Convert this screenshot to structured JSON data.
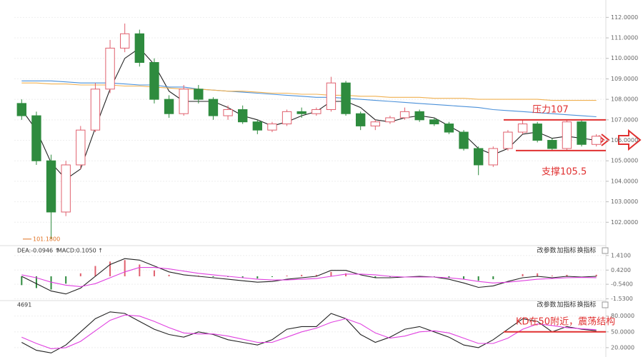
{
  "chart_data": [
    {
      "type": "candlestick",
      "ylim": [
        101.0,
        112.5
      ],
      "yticks": [
        {
          "value": 102,
          "label": "102.0000"
        },
        {
          "value": 103,
          "label": "103.0000"
        },
        {
          "value": 104,
          "label": "104.0000"
        },
        {
          "value": 105,
          "label": "105.0000"
        },
        {
          "value": 106,
          "label": "106.0000"
        },
        {
          "value": 107,
          "label": "107.0000"
        },
        {
          "value": 108,
          "label": "108.0000"
        },
        {
          "value": 109,
          "label": "109.0000"
        },
        {
          "value": 110,
          "label": "110.0000"
        },
        {
          "value": 111,
          "label": "111.0000"
        },
        {
          "value": 112,
          "label": "112.0000"
        }
      ],
      "up_color": "#e0606e",
      "down_color": "#2e8b3e",
      "candles": {
        "open": [
          107.8,
          107.2,
          105.0,
          102.5,
          104.8,
          106.5,
          108.5,
          110.5,
          111.2,
          109.8,
          108.0,
          107.3,
          108.5,
          108.0,
          107.2,
          107.5,
          106.9,
          106.5,
          106.8,
          107.4,
          107.3,
          107.5,
          108.8,
          107.3,
          106.7,
          106.9,
          107.1,
          107.4,
          107.0,
          106.8,
          106.4,
          105.6,
          104.8,
          105.6,
          106.4,
          106.8,
          106.0,
          105.6,
          106.9,
          105.8
        ],
        "high": [
          108.0,
          107.4,
          105.3,
          105.0,
          106.7,
          108.8,
          110.9,
          111.7,
          111.4,
          110.0,
          108.2,
          108.7,
          108.7,
          108.1,
          107.7,
          107.7,
          107.0,
          106.9,
          107.5,
          107.6,
          107.6,
          109.1,
          108.9,
          107.4,
          107.0,
          107.2,
          107.6,
          107.5,
          107.1,
          106.9,
          106.5,
          105.7,
          105.7,
          106.5,
          107.0,
          106.9,
          106.1,
          107.0,
          107.0,
          106.3
        ],
        "low": [
          107.0,
          104.8,
          101.18,
          102.3,
          104.6,
          106.4,
          108.3,
          110.3,
          109.6,
          107.8,
          107.1,
          107.2,
          107.8,
          107.0,
          107.0,
          106.8,
          106.3,
          106.4,
          106.7,
          107.1,
          107.2,
          107.4,
          107.2,
          106.5,
          106.5,
          106.8,
          107.0,
          106.9,
          106.7,
          106.3,
          105.5,
          104.3,
          104.7,
          105.5,
          106.3,
          105.9,
          105.5,
          105.5,
          105.7,
          105.7
        ],
        "close": [
          107.2,
          105.0,
          102.5,
          104.8,
          106.5,
          108.5,
          110.5,
          111.2,
          109.8,
          108.0,
          107.3,
          108.5,
          108.0,
          107.2,
          107.5,
          106.9,
          106.5,
          106.8,
          107.4,
          107.3,
          107.5,
          108.8,
          107.3,
          106.7,
          106.9,
          107.1,
          107.4,
          107.0,
          106.8,
          106.4,
          105.6,
          104.8,
          105.6,
          106.4,
          106.8,
          106.0,
          105.6,
          106.9,
          105.8,
          106.2
        ]
      },
      "series": [
        {
          "color": "#222222",
          "values": [
            107.5,
            106.5,
            104.9,
            104.1,
            104.6,
            106.6,
            108.5,
            110.0,
            110.5,
            109.7,
            108.4,
            107.9,
            107.9,
            107.9,
            107.6,
            107.2,
            107.0,
            106.7,
            106.9,
            107.2,
            107.4,
            107.9,
            107.9,
            107.6,
            107.0,
            106.9,
            107.1,
            107.2,
            107.1,
            106.7,
            106.3,
            105.6,
            105.3,
            105.6,
            106.3,
            106.4,
            106.1,
            106.2,
            106.1,
            106.0
          ]
        },
        {
          "color": "#4a90d9",
          "values": [
            108.9,
            108.9,
            108.9,
            108.85,
            108.8,
            108.8,
            108.8,
            108.75,
            108.7,
            108.7,
            108.6,
            108.6,
            108.5,
            108.45,
            108.4,
            108.35,
            108.3,
            108.25,
            108.2,
            108.15,
            108.1,
            108.1,
            108.05,
            108.0,
            107.95,
            107.9,
            107.85,
            107.8,
            107.75,
            107.7,
            107.65,
            107.6,
            107.5,
            107.45,
            107.4,
            107.35,
            107.3,
            107.25,
            107.2,
            107.15
          ]
        },
        {
          "color": "#f0b050",
          "values": [
            108.8,
            108.8,
            108.75,
            108.75,
            108.7,
            108.7,
            108.7,
            108.65,
            108.65,
            108.6,
            108.55,
            108.5,
            108.5,
            108.45,
            108.4,
            108.4,
            108.35,
            108.3,
            108.3,
            108.25,
            108.25,
            108.2,
            108.2,
            108.15,
            108.15,
            108.1,
            108.1,
            108.1,
            108.05,
            108.05,
            108.05,
            108.0,
            108.0,
            108.0,
            108.0,
            108.0,
            107.95,
            107.95,
            107.95,
            107.95
          ]
        }
      ],
      "low_marker": {
        "value": 101.18,
        "label": "101.1800"
      },
      "annotations": [
        {
          "text": "压力107",
          "value": 107
        },
        {
          "text": "支撑105.5",
          "value": 105.5
        }
      ]
    },
    {
      "type": "macd",
      "header": [
        "DEA:-0.0946 ↑",
        "MACD:0.1050 ↑"
      ],
      "buttons": [
        "改参数",
        "加指标",
        "换指标"
      ],
      "ylim": [
        -1.6,
        1.5
      ],
      "yticks": [
        {
          "value": 1.41,
          "label": "1.4100"
        },
        {
          "value": 0.42,
          "label": "0.4200"
        },
        {
          "value": -0.54,
          "label": "-0.5400"
        },
        {
          "value": -1.53,
          "label": "-1.5300"
        }
      ],
      "up_color": "#e0606e",
      "down_color": "#2e8b3e",
      "values": [
        -0.6,
        -0.8,
        -0.9,
        -0.5,
        0.2,
        0.7,
        1.0,
        1.1,
        0.8,
        0.4,
        0.1,
        0.0,
        0.05,
        -0.05,
        -0.05,
        -0.1,
        -0.15,
        -0.05,
        0.05,
        0.1,
        0.1,
        0.3,
        0.2,
        0.0,
        -0.1,
        -0.05,
        0.0,
        0.0,
        -0.05,
        -0.1,
        -0.2,
        -0.3,
        -0.2,
        0.0,
        0.15,
        0.2,
        0.05,
        0.1,
        0.0,
        0.105
      ],
      "series": [
        {
          "color": "#222222",
          "values": [
            0.0,
            -0.5,
            -1.0,
            -1.2,
            -0.8,
            0.0,
            0.8,
            1.2,
            1.1,
            0.7,
            0.3,
            0.1,
            0.0,
            -0.1,
            -0.2,
            -0.3,
            -0.4,
            -0.35,
            -0.2,
            -0.1,
            0.0,
            0.4,
            0.4,
            0.1,
            -0.1,
            -0.1,
            -0.05,
            0.0,
            -0.05,
            -0.2,
            -0.45,
            -0.75,
            -0.65,
            -0.35,
            -0.1,
            0.0,
            -0.1,
            0.0,
            -0.05,
            0.0
          ]
        },
        {
          "color": "#e040e0",
          "values": [
            0.1,
            -0.1,
            -0.4,
            -0.6,
            -0.7,
            -0.5,
            -0.1,
            0.3,
            0.6,
            0.6,
            0.5,
            0.35,
            0.2,
            0.1,
            0.0,
            -0.1,
            -0.2,
            -0.25,
            -0.25,
            -0.2,
            -0.15,
            0.0,
            0.15,
            0.15,
            0.1,
            0.0,
            -0.05,
            -0.05,
            -0.05,
            -0.1,
            -0.2,
            -0.35,
            -0.45,
            -0.4,
            -0.3,
            -0.2,
            -0.15,
            -0.1,
            -0.08,
            -0.0946
          ]
        }
      ]
    },
    {
      "type": "line",
      "header": [
        "4691"
      ],
      "buttons": [
        "改参数",
        "加指标",
        "换指标"
      ],
      "ylim": [
        9,
        104
      ],
      "yticks": [
        {
          "value": 80,
          "label": "80.0000"
        },
        {
          "value": 50,
          "label": "50.0000"
        },
        {
          "value": 20,
          "label": "20.0000"
        }
      ],
      "series": [
        {
          "color": "#222222",
          "values": [
            30,
            15,
            10,
            25,
            50,
            75,
            88,
            85,
            70,
            55,
            45,
            40,
            50,
            45,
            35,
            30,
            25,
            35,
            55,
            60,
            60,
            85,
            75,
            45,
            30,
            40,
            55,
            60,
            50,
            40,
            25,
            20,
            35,
            55,
            75,
            70,
            50,
            60,
            55,
            52
          ]
        },
        {
          "color": "#e040e0",
          "values": [
            40,
            28,
            18,
            20,
            32,
            52,
            72,
            82,
            80,
            70,
            58,
            48,
            46,
            46,
            42,
            36,
            30,
            30,
            40,
            50,
            57,
            68,
            75,
            65,
            48,
            38,
            42,
            50,
            52,
            48,
            38,
            28,
            28,
            38,
            55,
            65,
            62,
            58,
            56,
            54
          ]
        }
      ],
      "annotations": [
        {
          "text": "KD在50附近，震荡结构",
          "value": 50
        }
      ]
    }
  ]
}
